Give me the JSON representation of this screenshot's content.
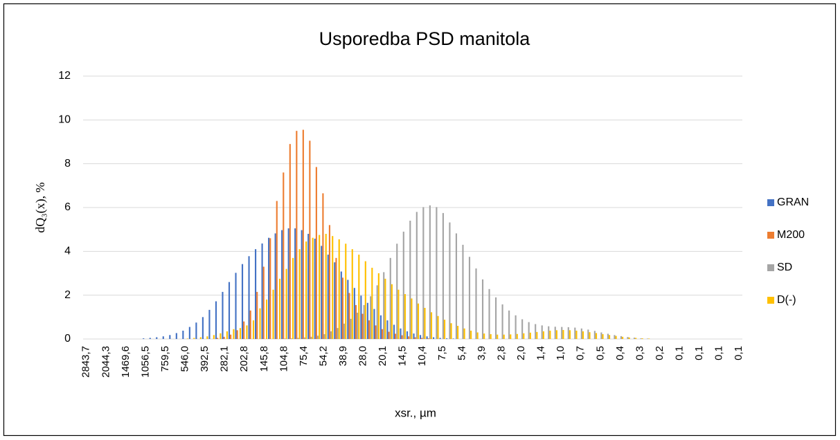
{
  "chart_data": {
    "type": "bar",
    "title": "Usporedba PSD manitola",
    "y_label": "dQ₃(x), %",
    "x_label": "xsr., µm",
    "categories": [
      "2843,7",
      null,
      null,
      "2044,3",
      null,
      null,
      "1469,6",
      null,
      null,
      "1056,5",
      null,
      null,
      "759,5",
      null,
      null,
      "546,0",
      null,
      null,
      "392,5",
      null,
      null,
      "282,1",
      null,
      null,
      "202,8",
      null,
      null,
      "145,8",
      null,
      null,
      "104,8",
      null,
      null,
      "75,4",
      null,
      null,
      "54,2",
      null,
      null,
      "38,9",
      null,
      null,
      "28,0",
      null,
      null,
      "20,1",
      null,
      null,
      "14,5",
      null,
      null,
      "10,4",
      null,
      null,
      "7,5",
      null,
      null,
      "5,4",
      null,
      null,
      "3,9",
      null,
      null,
      "2,8",
      null,
      null,
      "2,0",
      null,
      null,
      "1,4",
      null,
      null,
      "1,0",
      null,
      null,
      "0,7",
      null,
      null,
      "0,5",
      null,
      null,
      "0,4",
      null,
      null,
      "0,3",
      null,
      null,
      "0,2",
      null,
      null,
      "0,1",
      null,
      null,
      "0,1",
      null,
      null,
      "0,1",
      null,
      null,
      "0,1"
    ],
    "series": [
      {
        "name": "GRAN",
        "color": "#4472c4",
        "values": [
          0,
          0,
          0,
          0,
          0,
          0,
          0,
          0,
          0,
          0.03,
          0.05,
          0.08,
          0.12,
          0.18,
          0.27,
          0.38,
          0.55,
          0.75,
          1.0,
          1.33,
          1.72,
          2.15,
          2.6,
          3.02,
          3.42,
          3.78,
          4.1,
          4.36,
          4.62,
          4.82,
          4.97,
          5.05,
          5.05,
          4.97,
          4.8,
          4.58,
          4.25,
          3.85,
          3.5,
          3.08,
          2.7,
          2.33,
          1.98,
          1.65,
          1.37,
          1.08,
          0.85,
          0.65,
          0.48,
          0.35,
          0.25,
          0.18,
          0.12,
          0.08,
          0.05,
          0.03,
          0.02,
          0,
          0,
          0,
          0,
          0,
          0,
          0,
          0,
          0,
          0,
          0,
          0,
          0,
          0,
          0,
          0,
          0,
          0,
          0,
          0,
          0,
          0,
          0,
          0,
          0,
          0,
          0,
          0,
          0,
          0,
          0,
          0,
          0,
          0,
          0,
          0,
          0,
          0,
          0,
          0,
          0,
          0,
          0
        ]
      },
      {
        "name": "M200",
        "color": "#ed7d31",
        "values": [
          0,
          0,
          0,
          0,
          0,
          0,
          0,
          0,
          0,
          0,
          0,
          0,
          0,
          0,
          0,
          0,
          0,
          0,
          0,
          0,
          0.05,
          0.1,
          0.2,
          0.4,
          0.8,
          1.3,
          2.15,
          3.3,
          4.6,
          6.3,
          7.6,
          8.9,
          9.5,
          9.55,
          9.05,
          7.85,
          6.65,
          5.2,
          3.7,
          2.8,
          2.1,
          1.55,
          1.15,
          0.85,
          0.62,
          0.45,
          0.33,
          0.24,
          0.17,
          0.12,
          0.08,
          0.05,
          0.03,
          0,
          0,
          0,
          0,
          0,
          0,
          0,
          0,
          0,
          0,
          0,
          0,
          0,
          0,
          0,
          0,
          0,
          0,
          0,
          0,
          0,
          0,
          0,
          0,
          0,
          0,
          0,
          0,
          0,
          0,
          0,
          0,
          0,
          0,
          0,
          0,
          0,
          0,
          0,
          0,
          0,
          0,
          0,
          0,
          0,
          0,
          0
        ]
      },
      {
        "name": "SD",
        "color": "#a5a5a5",
        "values": [
          0,
          0,
          0,
          0,
          0,
          0,
          0,
          0,
          0,
          0,
          0,
          0,
          0,
          0,
          0,
          0,
          0,
          0,
          0,
          0,
          0,
          0,
          0,
          0,
          0,
          0,
          0,
          0,
          0,
          0,
          0.02,
          0.03,
          0.05,
          0.07,
          0.1,
          0.15,
          0.22,
          0.35,
          0.5,
          0.7,
          0.92,
          1.2,
          1.55,
          1.95,
          2.45,
          3.05,
          3.7,
          4.35,
          4.9,
          5.4,
          5.8,
          6.02,
          6.1,
          6.02,
          5.75,
          5.32,
          4.82,
          4.3,
          3.75,
          3.22,
          2.72,
          2.28,
          1.9,
          1.58,
          1.3,
          1.08,
          0.9,
          0.77,
          0.68,
          0.62,
          0.58,
          0.56,
          0.55,
          0.54,
          0.52,
          0.48,
          0.43,
          0.37,
          0.3,
          0.24,
          0.18,
          0.13,
          0.09,
          0.06,
          0.03,
          0.02,
          0,
          0,
          0,
          0,
          0,
          0,
          0,
          0,
          0,
          0,
          0,
          0,
          0,
          0
        ]
      },
      {
        "name": "D(-)",
        "color": "#ffc000",
        "values": [
          0,
          0,
          0,
          0,
          0,
          0,
          0,
          0,
          0,
          0,
          0,
          0,
          0,
          0,
          0,
          0.02,
          0.05,
          0.08,
          0.12,
          0.18,
          0.26,
          0.35,
          0.45,
          0.5,
          0.62,
          0.85,
          1.4,
          1.8,
          2.25,
          2.75,
          3.2,
          3.7,
          4.1,
          4.45,
          4.62,
          4.75,
          4.8,
          4.7,
          4.55,
          4.35,
          4.1,
          3.85,
          3.55,
          3.25,
          3.0,
          2.75,
          2.5,
          2.25,
          2.05,
          1.85,
          1.62,
          1.42,
          1.22,
          1.05,
          0.88,
          0.72,
          0.6,
          0.48,
          0.38,
          0.3,
          0.25,
          0.22,
          0.2,
          0.2,
          0.21,
          0.23,
          0.26,
          0.29,
          0.32,
          0.35,
          0.38,
          0.4,
          0.41,
          0.4,
          0.38,
          0.35,
          0.31,
          0.27,
          0.22,
          0.18,
          0.14,
          0.1,
          0.07,
          0.05,
          0.03,
          0.02,
          0,
          0,
          0,
          0,
          0,
          0,
          0,
          0,
          0,
          0,
          0,
          0,
          0,
          0
        ]
      }
    ],
    "ylim": [
      0,
      12
    ],
    "yticks": [
      0,
      2,
      4,
      6,
      8,
      10,
      12
    ],
    "grid": true,
    "legend": "right"
  }
}
